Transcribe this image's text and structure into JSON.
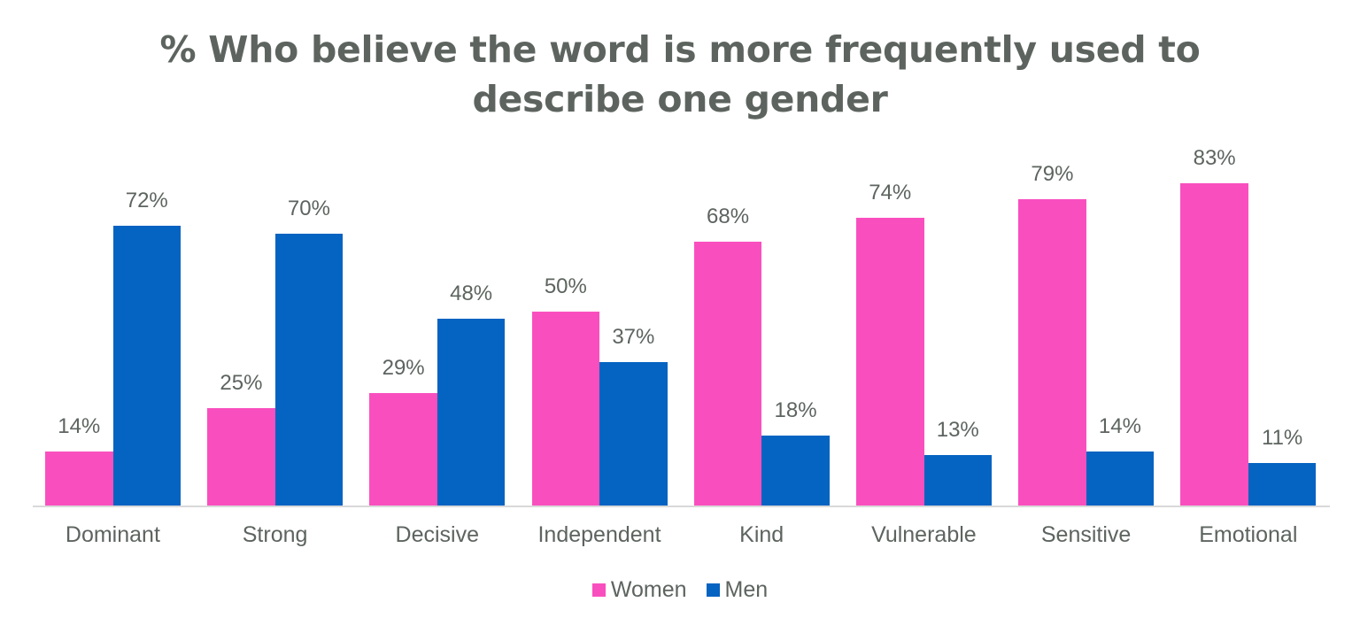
{
  "chart_data": {
    "type": "bar",
    "title": "% Who believe the word is more frequently used to describe one gender",
    "title_lines": [
      "% Who believe the word is more frequently used to",
      "describe one gender"
    ],
    "categories": [
      "Dominant",
      "Strong",
      "Decisive",
      "Independent",
      "Kind",
      "Vulnerable",
      "Sensitive",
      "Emotional"
    ],
    "series": [
      {
        "name": "Women",
        "color": "#f94fbe",
        "values": [
          14,
          25,
          29,
          50,
          68,
          74,
          79,
          83
        ]
      },
      {
        "name": "Men",
        "color": "#0563c1",
        "values": [
          72,
          70,
          48,
          37,
          18,
          13,
          14,
          11
        ]
      }
    ],
    "data_labels": {
      "Women": [
        "14%",
        "25%",
        "29%",
        "50%",
        "68%",
        "74%",
        "79%",
        "83%"
      ],
      "Men": [
        "72%",
        "70%",
        "48%",
        "37%",
        "18%",
        "13%",
        "14%",
        "11%"
      ]
    },
    "xlabel": "",
    "ylabel": "",
    "ylim": [
      0,
      90
    ],
    "grid": false,
    "legend_position": "bottom"
  },
  "legend": [
    {
      "label": "Women",
      "color": "#f94fbe"
    },
    {
      "label": "Men",
      "color": "#0563c1"
    }
  ]
}
